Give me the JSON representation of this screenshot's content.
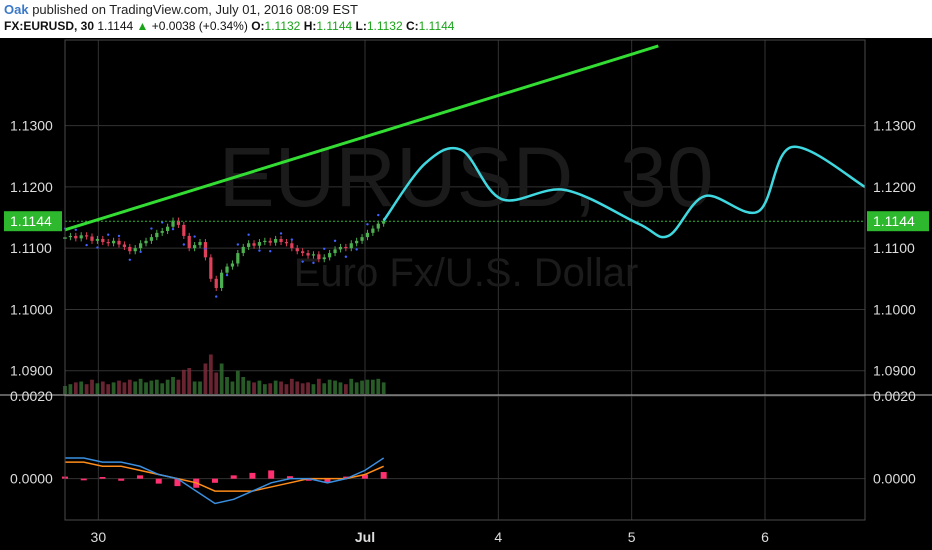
{
  "header": {
    "author": "Oak",
    "published": "published on TradingView.com, July 01, 2016 08:09 EST",
    "symbol": "FX:EURUSD, 30",
    "last": "1.1144",
    "change_arrow": "▲",
    "change": "+0.0038 (+0.34%)",
    "o_label": "O:",
    "o_value": "1.1132",
    "h_label": "H:",
    "h_value": "1.1144",
    "l_label": "L:",
    "l_value": "1.1132",
    "c_label": "C:",
    "c_value": "1.1144"
  },
  "watermark": {
    "symbol": "EURUSD, 30",
    "description": "Euro Fx/U.S. Dollar"
  },
  "colors": {
    "background": "#000000",
    "grid": "#333333",
    "trendline": "#33dd33",
    "projection": "#40d8e0",
    "price_label": "#2eb82e",
    "bull": "#4caf50",
    "bear": "#e0405a",
    "macd": "#3b8fe0",
    "signal": "#ff8c1a",
    "histogram": "#ff3070"
  },
  "chart_data": {
    "type": "line",
    "main_axis_ticks": [
      "1.1300",
      "1.1200",
      "1.1100",
      "1.1000",
      "1.0900"
    ],
    "ylim": [
      1.0862,
      1.1443
    ],
    "current_price_label": "1.1144",
    "current_price": 1.1144,
    "x_ticks": [
      "30",
      "Jul",
      "4",
      "5",
      "6"
    ],
    "x": [
      0,
      4,
      6,
      8,
      10
    ],
    "xlim": [
      -0.5,
      11.5
    ],
    "trendline": {
      "x": [
        -0.5,
        8.4
      ],
      "y": [
        1.113,
        1.143
      ]
    },
    "candles": {
      "x_range": [
        -0.5,
        4.28
      ],
      "closes": [
        1.1118,
        1.112,
        1.1116,
        1.1121,
        1.1119,
        1.1112,
        1.1115,
        1.111,
        1.1108,
        1.1112,
        1.1106,
        1.1102,
        1.1095,
        1.11,
        1.1108,
        1.1112,
        1.1118,
        1.1125,
        1.1128,
        1.1135,
        1.1145,
        1.1138,
        1.112,
        1.11,
        1.1105,
        1.111,
        1.1085,
        1.105,
        1.1035,
        1.106,
        1.107,
        1.1075,
        1.1092,
        1.1102,
        1.1108,
        1.1104,
        1.111,
        1.1112,
        1.1109,
        1.1115,
        1.111,
        1.1108,
        1.11,
        1.1095,
        1.1092,
        1.1088,
        1.109,
        1.1082,
        1.1085,
        1.1092,
        1.1098,
        1.1102,
        1.11,
        1.1108,
        1.1112,
        1.1118,
        1.1125,
        1.1132,
        1.114,
        1.1144
      ]
    },
    "projection_path": {
      "x": [
        4.28,
        4.9,
        5.45,
        6.05,
        7.0,
        8.1,
        8.55,
        9.1,
        9.9,
        10.4,
        11.5
      ],
      "y": [
        1.1145,
        1.1238,
        1.126,
        1.118,
        1.1195,
        1.114,
        1.112,
        1.1185,
        1.116,
        1.1265,
        1.12
      ]
    },
    "indicator": {
      "ticks": [
        "0.0020",
        "0.0000"
      ],
      "ylim": [
        -0.001,
        0.002
      ],
      "macd": [
        0.0005,
        0.0005,
        0.0004,
        0.0004,
        0.0003,
        0.0001,
        0.0,
        -0.0003,
        -0.0006,
        -0.0005,
        -0.0003,
        -0.0001,
        0.0,
        0.0,
        -0.0001,
        0.0,
        0.0002,
        0.0005
      ],
      "signal": [
        0.0004,
        0.0004,
        0.0003,
        0.0003,
        0.0002,
        0.0001,
        0.0,
        -0.0001,
        -0.0003,
        -0.0003,
        -0.0003,
        -0.0002,
        -0.0001,
        0.0,
        0.0,
        0.0,
        0.0001,
        0.0003
      ],
      "histogram": [
        5e-05,
        -4e-05,
        4e-05,
        -5e-05,
        8e-05,
        -0.00012,
        -0.00018,
        -0.00022,
        -0.0001,
        8e-05,
        0.00014,
        0.0002,
        6e-05,
        -5e-05,
        -8e-05,
        5e-05,
        0.0001,
        0.00016
      ]
    },
    "volume_bars_count": 60
  }
}
